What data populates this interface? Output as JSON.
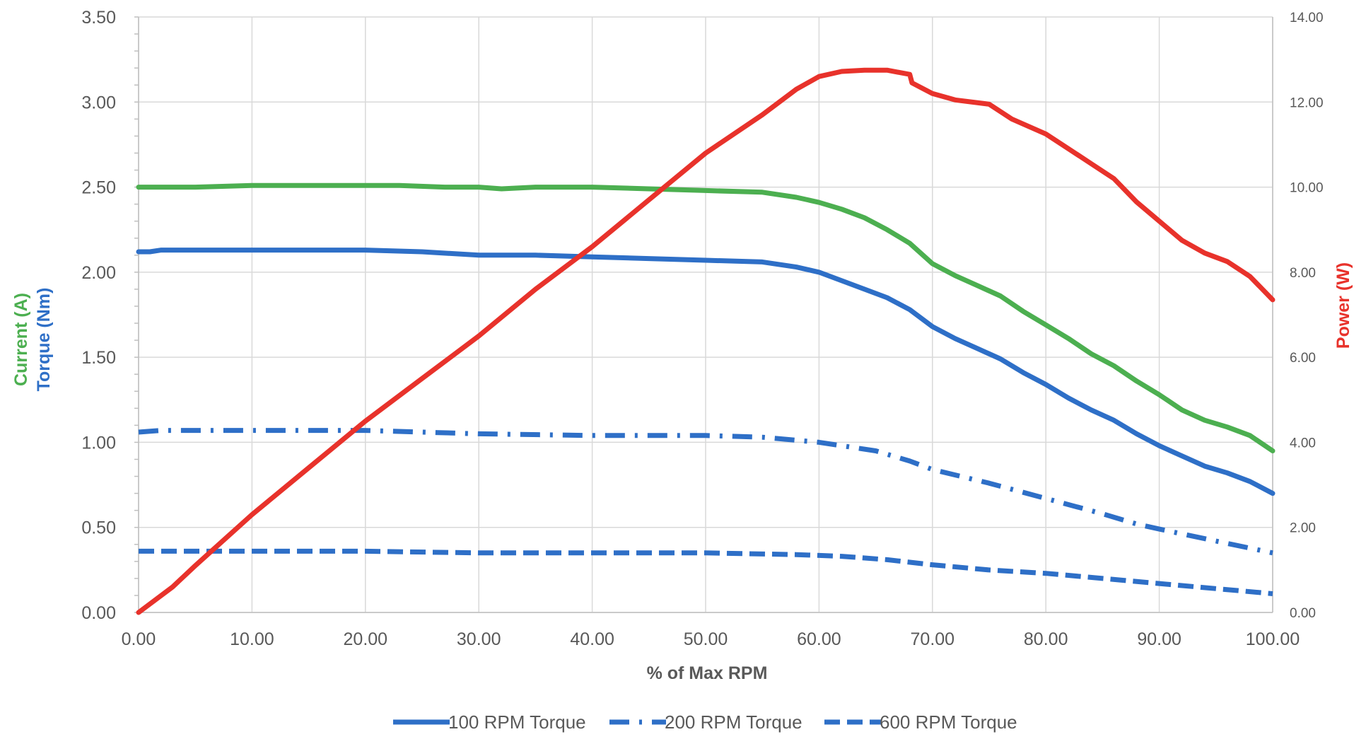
{
  "chart_data": {
    "type": "line",
    "xlabel": "% of Max RPM",
    "ylabel_left_top": "Current (A)",
    "ylabel_left_bottom": "Torque (Nm)",
    "ylabel_right": "Power (W)",
    "xlim": [
      0,
      100
    ],
    "ylim_left": [
      0,
      3.5
    ],
    "ylim_right": [
      0,
      14
    ],
    "grid": true,
    "legend_position": "bottom",
    "x_ticks": [
      "0.00",
      "10.00",
      "20.00",
      "30.00",
      "40.00",
      "50.00",
      "60.00",
      "70.00",
      "80.00",
      "90.00",
      "100.00"
    ],
    "y_left_ticks": [
      "0.00",
      "0.50",
      "1.00",
      "1.50",
      "2.00",
      "2.50",
      "3.00",
      "3.50"
    ],
    "y_right_ticks": [
      "0.00",
      "2.00",
      "4.00",
      "6.00",
      "8.00",
      "10.00",
      "12.00",
      "14.00"
    ],
    "colors": {
      "current": "#4CAF50",
      "torque": "#2E6FC7",
      "power": "#E8322B",
      "grid": "#D9D9D9",
      "tick_text": "#595959"
    },
    "series": [
      {
        "name": "100 RPM Torque",
        "axis": "left",
        "style": "solid",
        "color": "#2E6FC7",
        "in_legend": true,
        "points": [
          [
            0,
            2.12
          ],
          [
            1,
            2.12
          ],
          [
            2,
            2.13
          ],
          [
            10,
            2.13
          ],
          [
            20,
            2.13
          ],
          [
            25,
            2.12
          ],
          [
            30,
            2.1
          ],
          [
            33,
            2.1
          ],
          [
            35,
            2.1
          ],
          [
            40,
            2.09
          ],
          [
            45,
            2.08
          ],
          [
            50,
            2.07
          ],
          [
            55,
            2.06
          ],
          [
            58,
            2.03
          ],
          [
            60,
            2.0
          ],
          [
            62,
            1.95
          ],
          [
            64,
            1.9
          ],
          [
            66,
            1.85
          ],
          [
            68,
            1.78
          ],
          [
            70,
            1.68
          ],
          [
            72,
            1.61
          ],
          [
            74,
            1.55
          ],
          [
            76,
            1.49
          ],
          [
            78,
            1.41
          ],
          [
            80,
            1.34
          ],
          [
            82,
            1.26
          ],
          [
            84,
            1.19
          ],
          [
            86,
            1.13
          ],
          [
            88,
            1.05
          ],
          [
            90,
            0.98
          ],
          [
            92,
            0.92
          ],
          [
            94,
            0.86
          ],
          [
            96,
            0.82
          ],
          [
            98,
            0.77
          ],
          [
            100,
            0.7
          ]
        ]
      },
      {
        "name": "200 RPM Torque",
        "axis": "left",
        "style": "dashdot",
        "color": "#2E6FC7",
        "in_legend": true,
        "points": [
          [
            0,
            1.06
          ],
          [
            2,
            1.07
          ],
          [
            10,
            1.07
          ],
          [
            20,
            1.07
          ],
          [
            25,
            1.06
          ],
          [
            30,
            1.05
          ],
          [
            40,
            1.04
          ],
          [
            50,
            1.04
          ],
          [
            55,
            1.03
          ],
          [
            60,
            1.0
          ],
          [
            65,
            0.95
          ],
          [
            68,
            0.89
          ],
          [
            70,
            0.84
          ],
          [
            75,
            0.76
          ],
          [
            80,
            0.67
          ],
          [
            85,
            0.58
          ],
          [
            88,
            0.52
          ],
          [
            90,
            0.49
          ],
          [
            95,
            0.42
          ],
          [
            100,
            0.35
          ]
        ]
      },
      {
        "name": "600 RPM Torque",
        "axis": "left",
        "style": "dashed",
        "color": "#2E6FC7",
        "in_legend": true,
        "points": [
          [
            0,
            0.36
          ],
          [
            10,
            0.36
          ],
          [
            20,
            0.36
          ],
          [
            30,
            0.35
          ],
          [
            40,
            0.35
          ],
          [
            50,
            0.35
          ],
          [
            58,
            0.34
          ],
          [
            62,
            0.33
          ],
          [
            66,
            0.31
          ],
          [
            70,
            0.28
          ],
          [
            75,
            0.25
          ],
          [
            80,
            0.23
          ],
          [
            85,
            0.2
          ],
          [
            90,
            0.17
          ],
          [
            95,
            0.14
          ],
          [
            100,
            0.11
          ]
        ]
      },
      {
        "name": "Current",
        "axis": "left",
        "style": "solid",
        "color": "#4CAF50",
        "in_legend": false,
        "points": [
          [
            0,
            2.5
          ],
          [
            5,
            2.5
          ],
          [
            10,
            2.51
          ],
          [
            15,
            2.51
          ],
          [
            20,
            2.51
          ],
          [
            23,
            2.51
          ],
          [
            27,
            2.5
          ],
          [
            30,
            2.5
          ],
          [
            32,
            2.49
          ],
          [
            35,
            2.5
          ],
          [
            40,
            2.5
          ],
          [
            45,
            2.49
          ],
          [
            50,
            2.48
          ],
          [
            55,
            2.47
          ],
          [
            58,
            2.44
          ],
          [
            60,
            2.41
          ],
          [
            62,
            2.37
          ],
          [
            64,
            2.32
          ],
          [
            66,
            2.25
          ],
          [
            68,
            2.17
          ],
          [
            70,
            2.05
          ],
          [
            72,
            1.98
          ],
          [
            74,
            1.92
          ],
          [
            76,
            1.86
          ],
          [
            78,
            1.77
          ],
          [
            80,
            1.69
          ],
          [
            82,
            1.61
          ],
          [
            84,
            1.52
          ],
          [
            86,
            1.45
          ],
          [
            88,
            1.36
          ],
          [
            90,
            1.28
          ],
          [
            92,
            1.19
          ],
          [
            94,
            1.13
          ],
          [
            96,
            1.09
          ],
          [
            98,
            1.04
          ],
          [
            100,
            0.95
          ]
        ]
      },
      {
        "name": "Power",
        "axis": "right",
        "style": "solid",
        "color": "#E8322B",
        "in_legend": false,
        "points": [
          [
            0,
            0.0
          ],
          [
            1,
            0.2
          ],
          [
            3,
            0.6
          ],
          [
            5,
            1.1
          ],
          [
            10,
            2.3
          ],
          [
            15,
            3.4
          ],
          [
            20,
            4.5
          ],
          [
            25,
            5.5
          ],
          [
            30,
            6.5
          ],
          [
            35,
            7.6
          ],
          [
            40,
            8.6
          ],
          [
            45,
            9.7
          ],
          [
            50,
            10.8
          ],
          [
            55,
            11.7
          ],
          [
            58,
            12.3
          ],
          [
            60,
            12.6
          ],
          [
            62,
            12.72
          ],
          [
            64,
            12.75
          ],
          [
            66,
            12.75
          ],
          [
            68,
            12.65
          ],
          [
            68.2,
            12.45
          ],
          [
            70,
            12.2
          ],
          [
            72,
            12.05
          ],
          [
            75,
            11.95
          ],
          [
            77,
            11.6
          ],
          [
            80,
            11.25
          ],
          [
            82,
            10.9
          ],
          [
            84,
            10.55
          ],
          [
            86,
            10.2
          ],
          [
            88,
            9.65
          ],
          [
            90,
            9.2
          ],
          [
            92,
            8.75
          ],
          [
            94,
            8.45
          ],
          [
            96,
            8.25
          ],
          [
            98,
            7.9
          ],
          [
            100,
            7.35
          ]
        ]
      }
    ]
  }
}
